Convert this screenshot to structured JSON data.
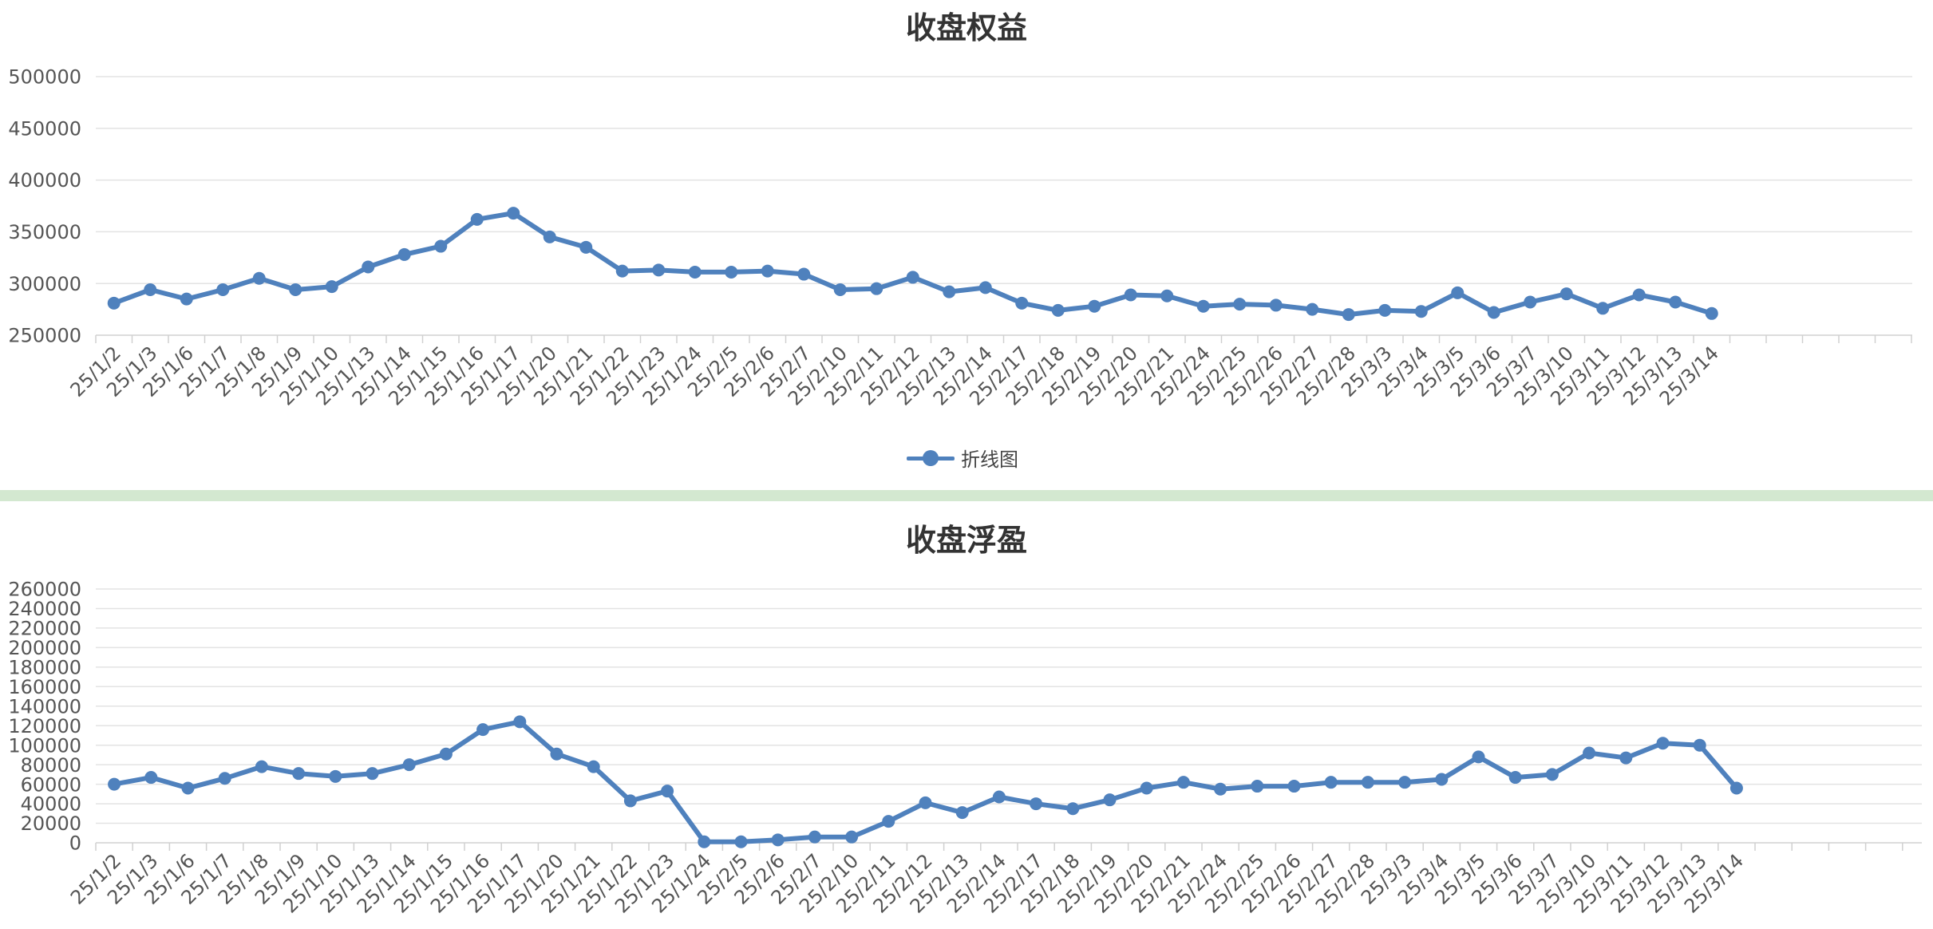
{
  "colors": {
    "series": "#4f81bd",
    "grid": "#e3e3e3",
    "axis": "#d0d0d0",
    "divider": "#d3e8d0"
  },
  "chart_data": [
    {
      "type": "line",
      "title": "收盘权益",
      "legend": {
        "label": "折线图",
        "position": "bottom"
      },
      "ylim": [
        250000,
        500000
      ],
      "yticks": [
        250000,
        300000,
        350000,
        400000,
        450000,
        500000
      ],
      "grid": true,
      "categories": [
        "25/1/2",
        "25/1/3",
        "25/1/6",
        "25/1/7",
        "25/1/8",
        "25/1/9",
        "25/1/10",
        "25/1/13",
        "25/1/14",
        "25/1/15",
        "25/1/16",
        "25/1/17",
        "25/1/20",
        "25/1/21",
        "25/1/22",
        "25/1/23",
        "25/1/24",
        "25/2/5",
        "25/2/6",
        "25/2/7",
        "25/2/10",
        "25/2/11",
        "25/2/12",
        "25/2/13",
        "25/2/14",
        "25/2/17",
        "25/2/18",
        "25/2/19",
        "25/2/20",
        "25/2/21",
        "25/2/24",
        "25/2/25",
        "25/2/26",
        "25/2/27",
        "25/2/28",
        "25/3/3",
        "25/3/4",
        "25/3/5",
        "25/3/6",
        "25/3/7",
        "25/3/10",
        "25/3/11",
        "25/3/12",
        "25/3/13",
        "25/3/14"
      ],
      "series": [
        {
          "values": [
            281000,
            294000,
            285000,
            294000,
            305000,
            294000,
            297000,
            316000,
            328000,
            336000,
            362000,
            368000,
            345000,
            335000,
            312000,
            313000,
            311000,
            311000,
            312000,
            309000,
            294000,
            295000,
            306000,
            292000,
            296000,
            281000,
            274000,
            278000,
            289000,
            288000,
            278000,
            280000,
            279000,
            275000,
            270000,
            274000,
            273000,
            291000,
            272000,
            282000,
            290000,
            276000,
            289000,
            282000,
            271000
          ]
        }
      ]
    },
    {
      "type": "line",
      "title": "收盘浮盈",
      "ylim": [
        0,
        260000
      ],
      "yticks": [
        0,
        20000,
        40000,
        60000,
        80000,
        100000,
        120000,
        140000,
        160000,
        180000,
        200000,
        220000,
        240000,
        260000
      ],
      "grid": true,
      "categories": [
        "25/1/2",
        "25/1/3",
        "25/1/6",
        "25/1/7",
        "25/1/8",
        "25/1/9",
        "25/1/10",
        "25/1/13",
        "25/1/14",
        "25/1/15",
        "25/1/16",
        "25/1/17",
        "25/1/20",
        "25/1/21",
        "25/1/22",
        "25/1/23",
        "25/1/24",
        "25/2/5",
        "25/2/6",
        "25/2/7",
        "25/2/10",
        "25/2/11",
        "25/2/12",
        "25/2/13",
        "25/2/14",
        "25/2/17",
        "25/2/18",
        "25/2/19",
        "25/2/20",
        "25/2/21",
        "25/2/24",
        "25/2/25",
        "25/2/26",
        "25/2/27",
        "25/2/28",
        "25/3/3",
        "25/3/4",
        "25/3/5",
        "25/3/6",
        "25/3/7",
        "25/3/10",
        "25/3/11",
        "25/3/12",
        "25/3/13",
        "25/3/14"
      ],
      "series": [
        {
          "values": [
            60000,
            67000,
            56000,
            66000,
            78000,
            71000,
            68000,
            71000,
            80000,
            91000,
            116000,
            124000,
            91000,
            78000,
            43000,
            53000,
            1000,
            1000,
            3000,
            6000,
            6000,
            22000,
            41000,
            31000,
            47000,
            40000,
            35000,
            44000,
            56000,
            62000,
            55000,
            58000,
            58000,
            62000,
            62000,
            62000,
            65000,
            88000,
            67000,
            70000,
            92000,
            87000,
            102000,
            100000,
            56000
          ]
        }
      ]
    }
  ]
}
